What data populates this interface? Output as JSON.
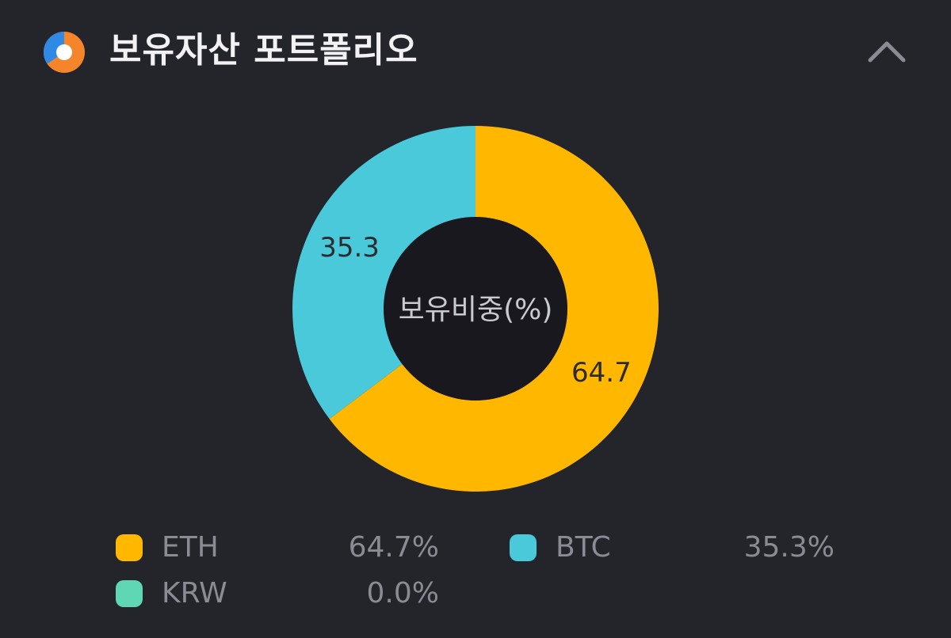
{
  "header": {
    "title": "보유자산 포트폴리오",
    "icon": "pie-chart-icon",
    "collapse_icon": "chevron-up-icon"
  },
  "colors": {
    "background": "#24242b",
    "donut_hole": "#18181e",
    "eth": "#ffb700",
    "btc": "#4ac9da",
    "krw": "#5fd6b4",
    "icon_blue": "#2f8ae6",
    "icon_orange": "#f5852a"
  },
  "chart_data": {
    "type": "pie",
    "donut": true,
    "center_label": "보유비중(%)",
    "slices": [
      {
        "name": "ETH",
        "value": 64.7,
        "data_label": "64.7",
        "legend_value": "64.7%",
        "color": "#ffb700"
      },
      {
        "name": "BTC",
        "value": 35.3,
        "data_label": "35.3",
        "legend_value": "35.3%",
        "color": "#4ac9da"
      },
      {
        "name": "KRW",
        "value": 0.0,
        "data_label": "",
        "legend_value": "0.0%",
        "color": "#5fd6b4"
      }
    ],
    "legend_position": "bottom"
  }
}
